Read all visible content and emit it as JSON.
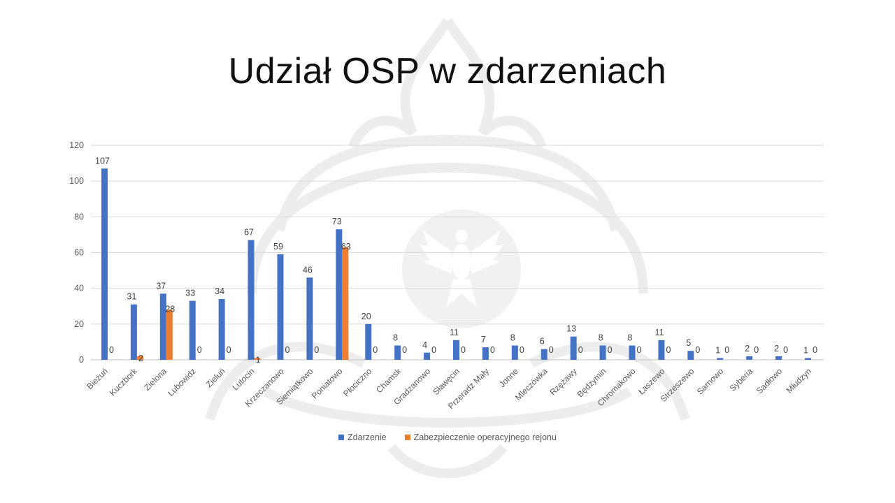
{
  "slide": {
    "title": "Udział OSP w zdarzeniach"
  },
  "chart_data": {
    "type": "bar",
    "title": "",
    "xlabel": "",
    "ylabel": "",
    "ylim": [
      0,
      120
    ],
    "yticks": [
      0,
      20,
      40,
      60,
      80,
      100,
      120
    ],
    "grid": true,
    "legend_position": "bottom",
    "categories": [
      "Bieżuń",
      "Kuczbork",
      "Zielona",
      "Lubowidz",
      "Zieluń",
      "Lutocin",
      "Krzeczanowo",
      "Siemiątkowo",
      "Poniatowo",
      "Płociczno",
      "Chamsk",
      "Gradzanowo",
      "Sławęcin",
      "Przeradz Mały",
      "Jonne",
      "Mleczówka",
      "Rzężawy",
      "Będzymin",
      "Chromakowo",
      "Łaszewo",
      "Strzeszewo",
      "Sarnowo",
      "Syberia",
      "Sadłowo",
      "Młudzyn"
    ],
    "series": [
      {
        "name": "Zdarzenie",
        "color": "#4472c4",
        "values": [
          107,
          31,
          37,
          33,
          34,
          67,
          59,
          46,
          73,
          20,
          8,
          4,
          11,
          7,
          8,
          6,
          13,
          8,
          8,
          11,
          5,
          1,
          2,
          2,
          1
        ]
      },
      {
        "name": "Zabezpieczenie operacyjnego rejonu",
        "color": "#ed7d31",
        "values": [
          0,
          2,
          28,
          0,
          0,
          1,
          0,
          0,
          63,
          0,
          0,
          0,
          0,
          0,
          0,
          0,
          0,
          0,
          0,
          0,
          0,
          0,
          0,
          0,
          0
        ]
      }
    ]
  }
}
